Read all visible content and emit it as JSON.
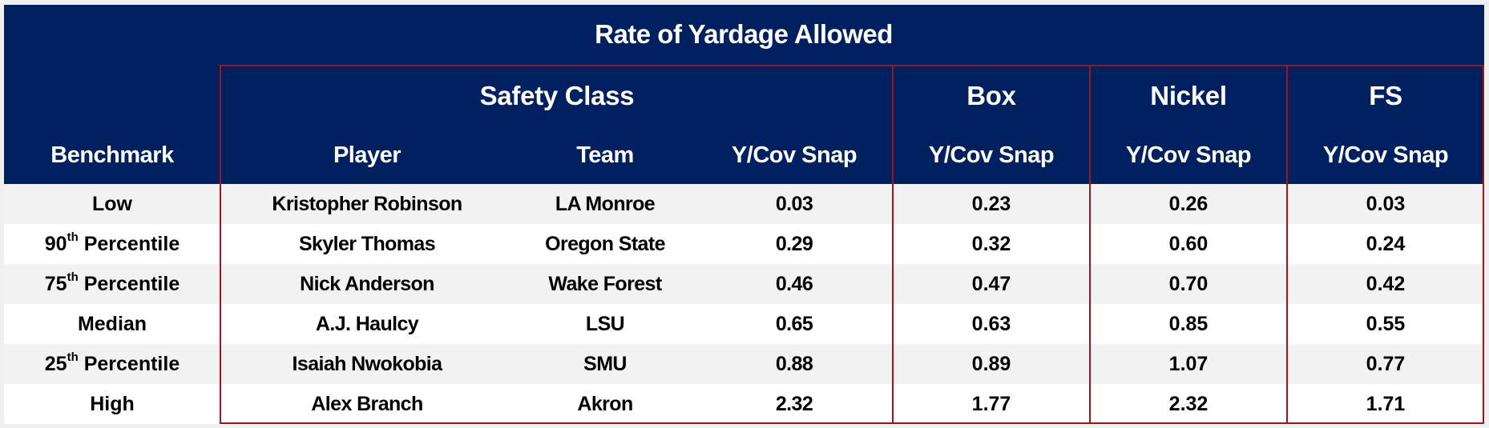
{
  "title": "Rate of Yardage Allowed",
  "groups": {
    "safety_class": "Safety Class",
    "box": "Box",
    "nickel": "Nickel",
    "fs": "FS"
  },
  "columns": {
    "benchmark": "Benchmark",
    "player": "Player",
    "team": "Team",
    "safety_ycov": "Y/Cov Snap",
    "box_ycov": "Y/Cov Snap",
    "nickel_ycov": "Y/Cov Snap",
    "fs_ycov": "Y/Cov Snap"
  },
  "colors": {
    "header_bg": "#002060",
    "border_red": "#a0141e",
    "row_alt": "#f2f2f2"
  },
  "rows": [
    {
      "bench_num": "",
      "bench_sup": "",
      "bench_text": "Low",
      "player": "Kristopher Robinson",
      "team": "LA Monroe",
      "safety": "0.03",
      "box": "0.23",
      "nickel": "0.26",
      "fs": "0.03"
    },
    {
      "bench_num": "90",
      "bench_sup": "th",
      "bench_text": " Percentile",
      "player": "Skyler Thomas",
      "team": "Oregon State",
      "safety": "0.29",
      "box": "0.32",
      "nickel": "0.60",
      "fs": "0.24"
    },
    {
      "bench_num": "75",
      "bench_sup": "th",
      "bench_text": " Percentile",
      "player": "Nick Anderson",
      "team": "Wake Forest",
      "safety": "0.46",
      "box": "0.47",
      "nickel": "0.70",
      "fs": "0.42"
    },
    {
      "bench_num": "",
      "bench_sup": "",
      "bench_text": "Median",
      "player": "A.J. Haulcy",
      "team": "LSU",
      "safety": "0.65",
      "box": "0.63",
      "nickel": "0.85",
      "fs": "0.55"
    },
    {
      "bench_num": "25",
      "bench_sup": "th",
      "bench_text": " Percentile",
      "player": "Isaiah Nwokobia",
      "team": "SMU",
      "safety": "0.88",
      "box": "0.89",
      "nickel": "1.07",
      "fs": "0.77"
    },
    {
      "bench_num": "",
      "bench_sup": "",
      "bench_text": "High",
      "player": "Alex Branch",
      "team": "Akron",
      "safety": "2.32",
      "box": "1.77",
      "nickel": "2.32",
      "fs": "1.71"
    }
  ]
}
